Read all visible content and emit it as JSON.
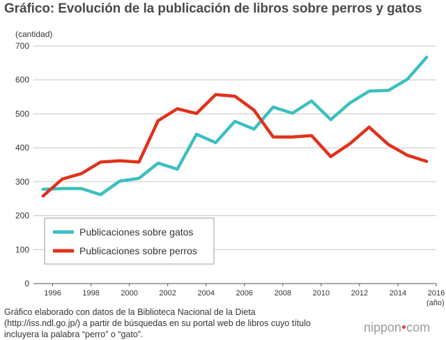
{
  "title": "Gráfico: Evolución de la publicación de libros sobre perros y gatos",
  "chart_data": {
    "type": "line",
    "title": "Gráfico: Evolución de la publicación de libros sobre perros y gatos",
    "ylabel": "(cantidad)",
    "xlabel": "(año)",
    "ylim": [
      0,
      700
    ],
    "xlim": [
      1995,
      2016
    ],
    "yticks": [
      "0",
      "100",
      "200",
      "300",
      "400",
      "500",
      "600",
      "700"
    ],
    "xticks": [
      "1996",
      "1998",
      "2000",
      "2002",
      "2004",
      "2006",
      "2008",
      "2010",
      "2012",
      "2014",
      "2016"
    ],
    "x": [
      1995,
      1996,
      1997,
      1998,
      1999,
      2000,
      2001,
      2002,
      2003,
      2004,
      2005,
      2006,
      2007,
      2008,
      2009,
      2010,
      2011,
      2012,
      2013,
      2014,
      2015
    ],
    "series": [
      {
        "name": "Publicaciones sobre gatos",
        "color": "#3dbfbf",
        "values": [
          278,
          280,
          280,
          262,
          302,
          310,
          355,
          337,
          440,
          415,
          478,
          455,
          520,
          502,
          538,
          483,
          532,
          567,
          569,
          602,
          667
        ]
      },
      {
        "name": "Publicaciones sobre perros",
        "color": "#e0321b",
        "values": [
          258,
          308,
          324,
          358,
          362,
          358,
          480,
          515,
          501,
          557,
          552,
          511,
          432,
          432,
          436,
          374,
          412,
          461,
          410,
          378,
          360
        ]
      }
    ],
    "legend": "bottom-left"
  },
  "source": {
    "line1": "Gráfico elaborado con datos de la Biblioteca Nacional de la Dieta",
    "line2": "(http://iss.ndl.go.jp/) a partir de búsquedas en su portal web de libros cuyo título",
    "line3": "incluyera la palabra “perro” o “gato”."
  },
  "logo": {
    "part1": "nippon",
    "part2": "com"
  }
}
